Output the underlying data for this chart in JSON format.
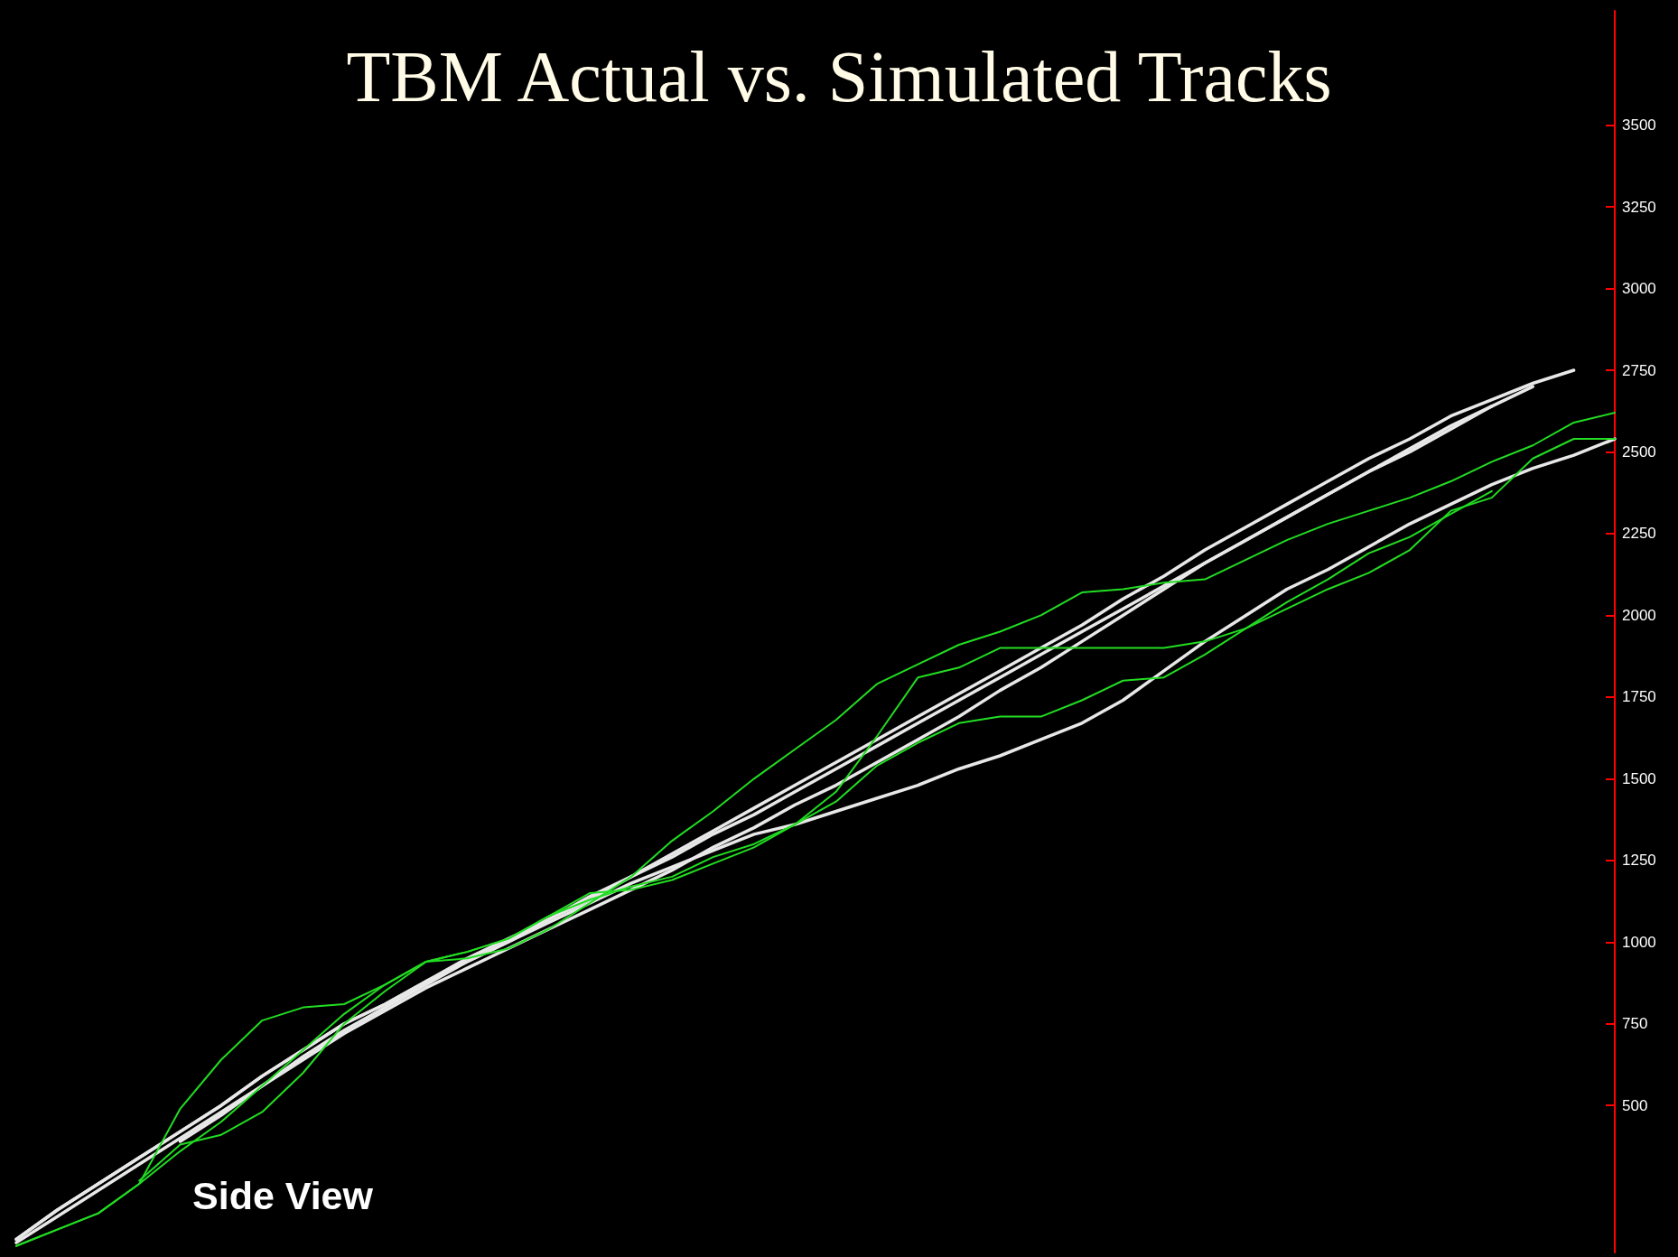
{
  "chart_data": {
    "type": "line",
    "title": "TBM Actual vs. Simulated Tracks",
    "annotations": [
      "Side View"
    ],
    "categories": [
      null,
      null,
      null,
      null,
      null,
      null,
      null,
      null,
      null,
      null,
      null,
      null,
      null,
      null,
      null,
      null,
      null,
      null,
      null,
      null,
      null,
      null,
      null,
      null,
      null,
      null,
      null,
      null,
      null,
      null,
      null,
      null,
      null,
      null,
      null,
      null,
      null,
      null,
      null,
      null
    ],
    "series": [
      {
        "color": "#e8e8e8",
        "values": [
          90,
          180,
          260,
          340,
          420,
          500,
          590,
          670,
          750,
          810,
          880,
          950,
          1010,
          1070,
          1140,
          1200,
          1270,
          1340,
          1410,
          1480,
          1550,
          1620,
          1690,
          1760,
          1830,
          1900,
          1970,
          2050,
          2120,
          2200,
          2270,
          2340,
          2410,
          2480,
          2540,
          2610,
          2660,
          2710,
          2750,
          null
        ]
      },
      {
        "color": "#e8e8e8",
        "values": [
          null,
          null,
          null,
          null,
          390,
          470,
          560,
          650,
          730,
          800,
          870,
          940,
          1000,
          1070,
          1130,
          1200,
          1260,
          1330,
          1390,
          1460,
          1530,
          1600,
          1670,
          1740,
          1810,
          1880,
          1950,
          2020,
          2090,
          2160,
          2230,
          2300,
          2370,
          2440,
          2500,
          2570,
          2640,
          null,
          null,
          null
        ]
      },
      {
        "color": "#e8e8e8",
        "values": [
          90,
          180,
          260,
          340,
          420,
          500,
          590,
          670,
          750,
          810,
          880,
          940,
          1000,
          1060,
          1120,
          1180,
          1230,
          1280,
          1330,
          1360,
          1400,
          1440,
          1480,
          1530,
          1570,
          1620,
          1670,
          1740,
          1830,
          1920,
          2000,
          2080,
          2140,
          2210,
          2280,
          2340,
          2400,
          2450,
          2490,
          2540
        ]
      },
      {
        "color": "#e8e8e8",
        "values": [
          80,
          160,
          240,
          320,
          400,
          480,
          560,
          640,
          720,
          790,
          860,
          920,
          980,
          1040,
          1100,
          1160,
          1220,
          1290,
          1350,
          1420,
          1480,
          1550,
          1620,
          1690,
          1770,
          1840,
          1920,
          2000,
          2080,
          2160,
          2230,
          2300,
          2370,
          2440,
          2510,
          2580,
          2640,
          2700,
          null,
          null
        ]
      },
      {
        "color": "#22dd22",
        "values": [
          70,
          120,
          170,
          260,
          490,
          640,
          760,
          800,
          810,
          870,
          940,
          950,
          980,
          1040,
          1120,
          1200,
          1310,
          1400,
          1500,
          1590,
          1680,
          1790,
          1850,
          1910,
          1950,
          2000,
          2070,
          2080,
          2100,
          2110,
          2170,
          2230,
          2280,
          2320,
          2360,
          2410,
          2470,
          2520,
          2590,
          2620
        ]
      },
      {
        "color": "#22dd22",
        "values": [
          70,
          120,
          170,
          260,
          360,
          450,
          560,
          670,
          780,
          870,
          940,
          970,
          1010,
          1080,
          1150,
          1160,
          1190,
          1240,
          1290,
          1360,
          1460,
          1630,
          1810,
          1840,
          1900,
          1900,
          1900,
          1900,
          1900,
          1920,
          1960,
          2020,
          2080,
          2130,
          2200,
          2320,
          2360,
          2480,
          2540,
          2540
        ]
      },
      {
        "color": "#22dd22",
        "values": [
          null,
          null,
          null,
          270,
          380,
          410,
          480,
          600,
          750,
          850,
          940,
          970,
          1010,
          1080,
          1130,
          1170,
          1200,
          1260,
          1300,
          1360,
          1430,
          1540,
          1610,
          1670,
          1690,
          1690,
          1740,
          1800,
          1810,
          1880,
          1960,
          2040,
          2110,
          2190,
          2240,
          2310,
          2380,
          null,
          null,
          null
        ]
      }
    ],
    "ylim": [
      50,
      3850
    ],
    "yticks": [
      500,
      750,
      1000,
      1250,
      1500,
      1750,
      2000,
      2250,
      2500,
      2750,
      3000,
      3250,
      3500
    ],
    "tick_labels": "y",
    "marker": "none",
    "line_style": "solid"
  }
}
